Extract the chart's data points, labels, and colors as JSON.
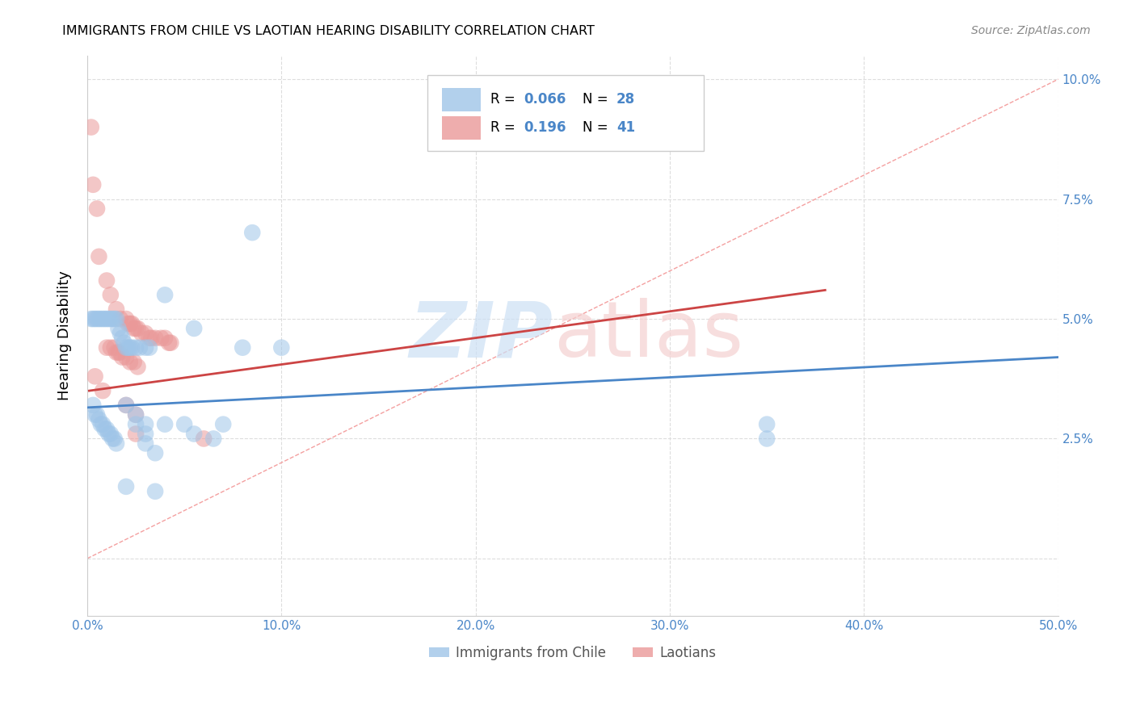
{
  "title": "IMMIGRANTS FROM CHILE VS LAOTIAN HEARING DISABILITY CORRELATION CHART",
  "source": "Source: ZipAtlas.com",
  "ylabel": "Hearing Disability",
  "y_tick_positions": [
    0.0,
    0.025,
    0.05,
    0.075,
    0.1
  ],
  "y_tick_labels": [
    "",
    "2.5%",
    "5.0%",
    "7.5%",
    "10.0%"
  ],
  "x_tick_positions": [
    0.0,
    0.1,
    0.2,
    0.3,
    0.4,
    0.5
  ],
  "x_tick_labels": [
    "0.0%",
    "10.0%",
    "20.0%",
    "30.0%",
    "40.0%",
    "50.0%"
  ],
  "x_min": 0.0,
  "x_max": 0.5,
  "y_min": -0.012,
  "y_max": 0.105,
  "legend_label_blue": "Immigrants from Chile",
  "legend_label_pink": "Laotians",
  "blue_color": "#9fc5e8",
  "pink_color": "#ea9999",
  "blue_line_color": "#4a86c8",
  "pink_line_color": "#cc4444",
  "diag_line_color": "#f4a0a0",
  "blue_scatter": [
    [
      0.002,
      0.05
    ],
    [
      0.003,
      0.05
    ],
    [
      0.004,
      0.05
    ],
    [
      0.005,
      0.05
    ],
    [
      0.006,
      0.05
    ],
    [
      0.007,
      0.05
    ],
    [
      0.008,
      0.05
    ],
    [
      0.009,
      0.05
    ],
    [
      0.01,
      0.05
    ],
    [
      0.011,
      0.05
    ],
    [
      0.012,
      0.05
    ],
    [
      0.013,
      0.05
    ],
    [
      0.014,
      0.05
    ],
    [
      0.015,
      0.05
    ],
    [
      0.016,
      0.048
    ],
    [
      0.017,
      0.047
    ],
    [
      0.018,
      0.046
    ],
    [
      0.019,
      0.045
    ],
    [
      0.02,
      0.044
    ],
    [
      0.021,
      0.044
    ],
    [
      0.022,
      0.044
    ],
    [
      0.023,
      0.044
    ],
    [
      0.025,
      0.044
    ],
    [
      0.027,
      0.044
    ],
    [
      0.03,
      0.044
    ],
    [
      0.032,
      0.044
    ],
    [
      0.04,
      0.055
    ],
    [
      0.055,
      0.048
    ],
    [
      0.08,
      0.044
    ],
    [
      0.02,
      0.032
    ],
    [
      0.025,
      0.03
    ],
    [
      0.025,
      0.028
    ],
    [
      0.03,
      0.028
    ],
    [
      0.03,
      0.026
    ],
    [
      0.03,
      0.024
    ],
    [
      0.035,
      0.022
    ],
    [
      0.04,
      0.028
    ],
    [
      0.05,
      0.028
    ],
    [
      0.055,
      0.026
    ],
    [
      0.065,
      0.025
    ],
    [
      0.085,
      0.068
    ],
    [
      0.1,
      0.044
    ],
    [
      0.02,
      0.015
    ],
    [
      0.035,
      0.014
    ],
    [
      0.07,
      0.028
    ],
    [
      0.35,
      0.028
    ],
    [
      0.35,
      0.025
    ],
    [
      0.003,
      0.032
    ],
    [
      0.004,
      0.03
    ],
    [
      0.005,
      0.03
    ],
    [
      0.006,
      0.029
    ],
    [
      0.007,
      0.028
    ],
    [
      0.008,
      0.028
    ],
    [
      0.009,
      0.027
    ],
    [
      0.01,
      0.027
    ],
    [
      0.011,
      0.026
    ],
    [
      0.012,
      0.026
    ],
    [
      0.013,
      0.025
    ],
    [
      0.014,
      0.025
    ],
    [
      0.015,
      0.024
    ]
  ],
  "pink_scatter": [
    [
      0.002,
      0.09
    ],
    [
      0.003,
      0.078
    ],
    [
      0.005,
      0.073
    ],
    [
      0.006,
      0.063
    ],
    [
      0.01,
      0.058
    ],
    [
      0.012,
      0.055
    ],
    [
      0.015,
      0.052
    ],
    [
      0.017,
      0.05
    ],
    [
      0.02,
      0.05
    ],
    [
      0.021,
      0.049
    ],
    [
      0.022,
      0.049
    ],
    [
      0.023,
      0.049
    ],
    [
      0.024,
      0.048
    ],
    [
      0.025,
      0.048
    ],
    [
      0.026,
      0.048
    ],
    [
      0.028,
      0.047
    ],
    [
      0.03,
      0.047
    ],
    [
      0.032,
      0.046
    ],
    [
      0.033,
      0.046
    ],
    [
      0.035,
      0.046
    ],
    [
      0.038,
      0.046
    ],
    [
      0.04,
      0.046
    ],
    [
      0.042,
      0.045
    ],
    [
      0.043,
      0.045
    ],
    [
      0.01,
      0.044
    ],
    [
      0.012,
      0.044
    ],
    [
      0.014,
      0.044
    ],
    [
      0.015,
      0.043
    ],
    [
      0.016,
      0.043
    ],
    [
      0.017,
      0.043
    ],
    [
      0.018,
      0.042
    ],
    [
      0.02,
      0.042
    ],
    [
      0.022,
      0.041
    ],
    [
      0.024,
      0.041
    ],
    [
      0.026,
      0.04
    ],
    [
      0.004,
      0.038
    ],
    [
      0.008,
      0.035
    ],
    [
      0.02,
      0.032
    ],
    [
      0.025,
      0.03
    ],
    [
      0.025,
      0.026
    ],
    [
      0.06,
      0.025
    ]
  ],
  "blue_line_x": [
    0.0,
    0.5
  ],
  "blue_line_y": [
    0.0315,
    0.042
  ],
  "pink_line_x": [
    0.001,
    0.38
  ],
  "pink_line_y": [
    0.035,
    0.056
  ],
  "diag_line_x": [
    0.0,
    0.5
  ],
  "diag_line_y": [
    0.0,
    0.1
  ]
}
